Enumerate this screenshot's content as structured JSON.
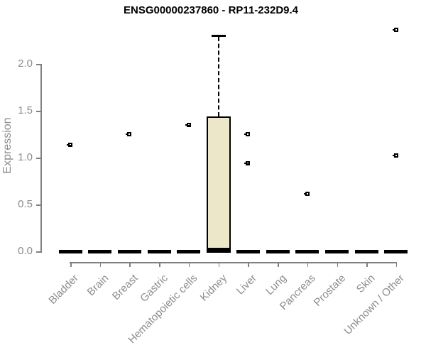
{
  "chart_data": {
    "type": "boxplot",
    "title": "ENSG00000237860 - RP11-232D9.4",
    "xlabel": "",
    "ylabel": "Expression",
    "ylim": [
      0.0,
      2.4
    ],
    "yticks": [
      0.0,
      0.5,
      1.0,
      1.5,
      2.0
    ],
    "ytick_labels": [
      "0.0",
      "0.5",
      "1.0",
      "1.5",
      "2.0"
    ],
    "grid": "off",
    "legend": "none",
    "categories": [
      "Bladder",
      "Brain",
      "Breast",
      "Gastric",
      "Hematopoietic cells",
      "Kidney",
      "Liver",
      "Lung",
      "Pancreas",
      "Prostate",
      "Skin",
      "Unknown / Other"
    ],
    "boxes": [
      {
        "category": "Bladder",
        "median": 0.0,
        "q1": 0.0,
        "q3": 0.0,
        "whisker_low": 0.0,
        "whisker_high": 0.0,
        "outliers": [
          1.14
        ]
      },
      {
        "category": "Brain",
        "median": 0.0,
        "q1": 0.0,
        "q3": 0.0,
        "whisker_low": 0.0,
        "whisker_high": 0.0,
        "outliers": []
      },
      {
        "category": "Breast",
        "median": 0.0,
        "q1": 0.0,
        "q3": 0.0,
        "whisker_low": 0.0,
        "whisker_high": 0.0,
        "outliers": [
          1.25
        ]
      },
      {
        "category": "Gastric",
        "median": 0.0,
        "q1": 0.0,
        "q3": 0.0,
        "whisker_low": 0.0,
        "whisker_high": 0.0,
        "outliers": []
      },
      {
        "category": "Hematopoietic cells",
        "median": 0.0,
        "q1": 0.0,
        "q3": 0.0,
        "whisker_low": 0.0,
        "whisker_high": 0.0,
        "outliers": [
          1.35
        ]
      },
      {
        "category": "Kidney",
        "median": 0.02,
        "q1": 0.0,
        "q3": 1.43,
        "whisker_low": 0.0,
        "whisker_high": 2.3,
        "outliers": []
      },
      {
        "category": "Liver",
        "median": 0.0,
        "q1": 0.0,
        "q3": 0.0,
        "whisker_low": 0.0,
        "whisker_high": 0.0,
        "outliers": [
          1.25,
          0.94
        ]
      },
      {
        "category": "Lung",
        "median": 0.0,
        "q1": 0.0,
        "q3": 0.0,
        "whisker_low": 0.0,
        "whisker_high": 0.0,
        "outliers": []
      },
      {
        "category": "Pancreas",
        "median": 0.0,
        "q1": 0.0,
        "q3": 0.0,
        "whisker_low": 0.0,
        "whisker_high": 0.0,
        "outliers": [
          0.61
        ]
      },
      {
        "category": "Prostate",
        "median": 0.0,
        "q1": 0.0,
        "q3": 0.0,
        "whisker_low": 0.0,
        "whisker_high": 0.0,
        "outliers": []
      },
      {
        "category": "Skin",
        "median": 0.0,
        "q1": 0.0,
        "q3": 0.0,
        "whisker_low": 0.0,
        "whisker_high": 0.0,
        "outliers": []
      },
      {
        "category": "Unknown / Other",
        "median": 0.0,
        "q1": 0.0,
        "q3": 0.0,
        "whisker_low": 0.0,
        "whisker_high": 0.0,
        "outliers": [
          2.36,
          1.02
        ]
      }
    ],
    "colors": {
      "box_fill": "#ECE7C9",
      "box_border": "#000000",
      "marker": "#000000",
      "axis_line": "#808080",
      "text": "#8C8C8C",
      "title_text": "#000000"
    }
  }
}
